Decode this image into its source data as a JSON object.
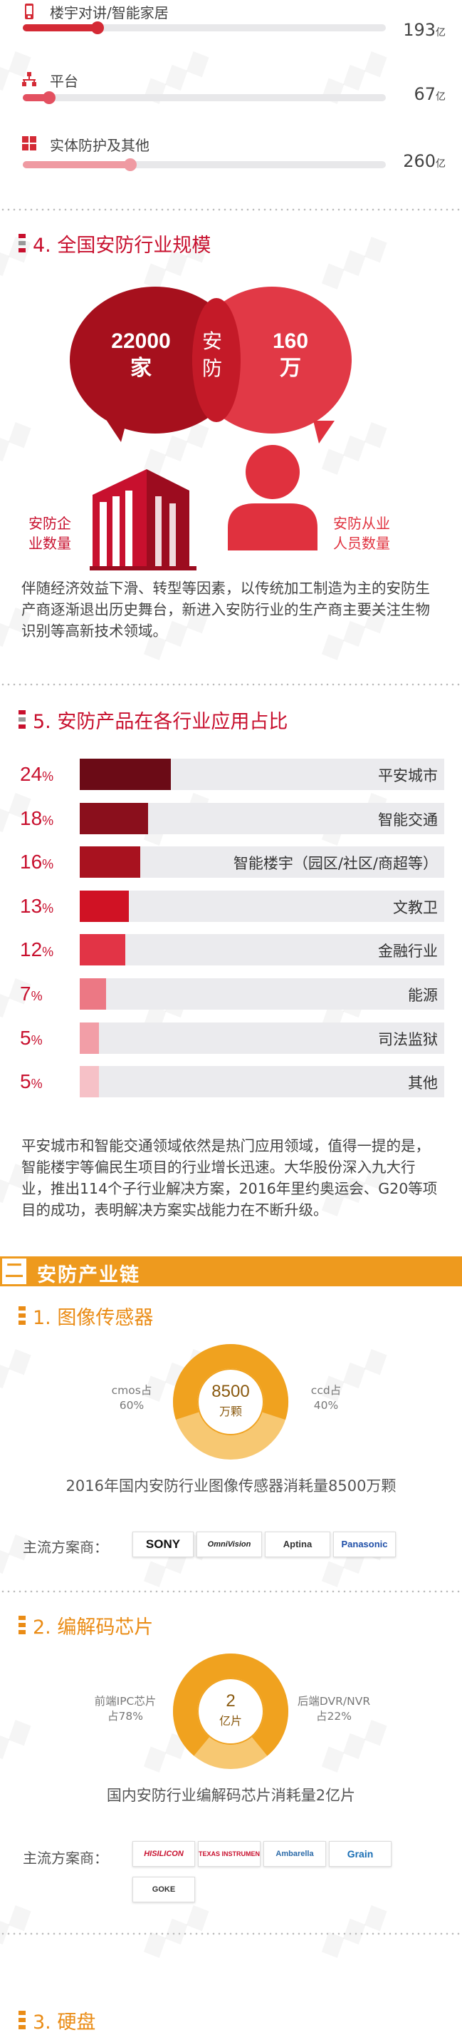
{
  "market_bars": [
    {
      "label": "楼宇对讲/智能家居",
      "value": "193",
      "unit": "亿",
      "share": 0.22,
      "color": "#d42a35",
      "icon": "phone-icon"
    },
    {
      "label": "平台",
      "value": "67",
      "unit": "亿",
      "share": 0.07,
      "color": "#e35060",
      "icon": "network-icon"
    },
    {
      "label": "实体防护及其他",
      "value": "260",
      "unit": "亿",
      "share": 0.29,
      "color": "#e77f8a",
      "icon": "grid-icon"
    }
  ],
  "section4": {
    "title": "4. 全国安防行业规模",
    "companies": {
      "number": "22000",
      "unit": "家",
      "label_line1": "安防企",
      "label_line2": "业数量"
    },
    "center_line1": "安",
    "center_line2": "防",
    "people": {
      "number": "160",
      "unit": "万",
      "label_line1": "安防从业",
      "label_line2": "人员数量"
    },
    "paragraph": "伴随经济效益下滑、转型等因素，以传统加工制造为主的安防生产商逐渐退出历史舞台，新进入安防行业的生产商主要关注生物识别等高新技术领域。"
  },
  "section5": {
    "title": "5. 安防产品在各行业应用占比",
    "paragraph": "平安城市和智能交通领域依然是热门应用领域，值得一提的是，智能楼宇等偏民生项目的行业增长迅速。大华股份深入九大行业，推出114个子行业解决方案，2016年里约奥运会、G20等项目的成功，表明解决方案实战能力在不断升级。"
  },
  "chart_data": {
    "type": "bar",
    "title": "5. 安防产品在各行业应用占比",
    "categories": [
      "平安城市",
      "智能交通",
      "智能楼宇（园区/社区/商超等）",
      "文教卫",
      "金融行业",
      "能源",
      "司法监狱",
      "其他"
    ],
    "values": [
      24,
      18,
      16,
      13,
      12,
      7,
      5,
      5
    ],
    "unit": "%",
    "colors": [
      "#6b0b16",
      "#8a0f1c",
      "#a8121f",
      "#d01224",
      "#e23446",
      "#ec7884",
      "#f29ea7",
      "#f6c1c7"
    ],
    "orientation": "horizontal"
  },
  "chain": {
    "band_box": "二",
    "band_title": "安防产业链",
    "sensor": {
      "title": "1. 图像传感器",
      "center_value": "8500",
      "center_unit": "万颗",
      "cmos_label": "cmos占",
      "cmos_pct": "60%",
      "ccd_label": "ccd占",
      "ccd_pct": "40%",
      "caption": "2016年国内安防行业图像传感器消耗量8500万颗",
      "vendors_label": "主流方案商：",
      "vendors": [
        "SONY",
        "OmniVision",
        "Aptina",
        "Panasonic"
      ]
    },
    "codec": {
      "title": "2. 编解码芯片",
      "center_value": "2",
      "center_unit": "亿片",
      "front_label": "前端IPC芯片",
      "front_pct": "占78%",
      "back_label": "后端DVR/NVR",
      "back_pct": "占22%",
      "caption": "国内安防行业编解码芯片消耗量2亿片",
      "vendors_label": "主流方案商：",
      "vendors": [
        "HISILICON",
        "TEXAS INSTRUMENTS",
        "Ambarella",
        "Grain",
        "GOKE"
      ]
    },
    "next_title": "3. 硬盘"
  },
  "donut_colors": {
    "main": "#f0a21f",
    "light": "#f7c872"
  }
}
